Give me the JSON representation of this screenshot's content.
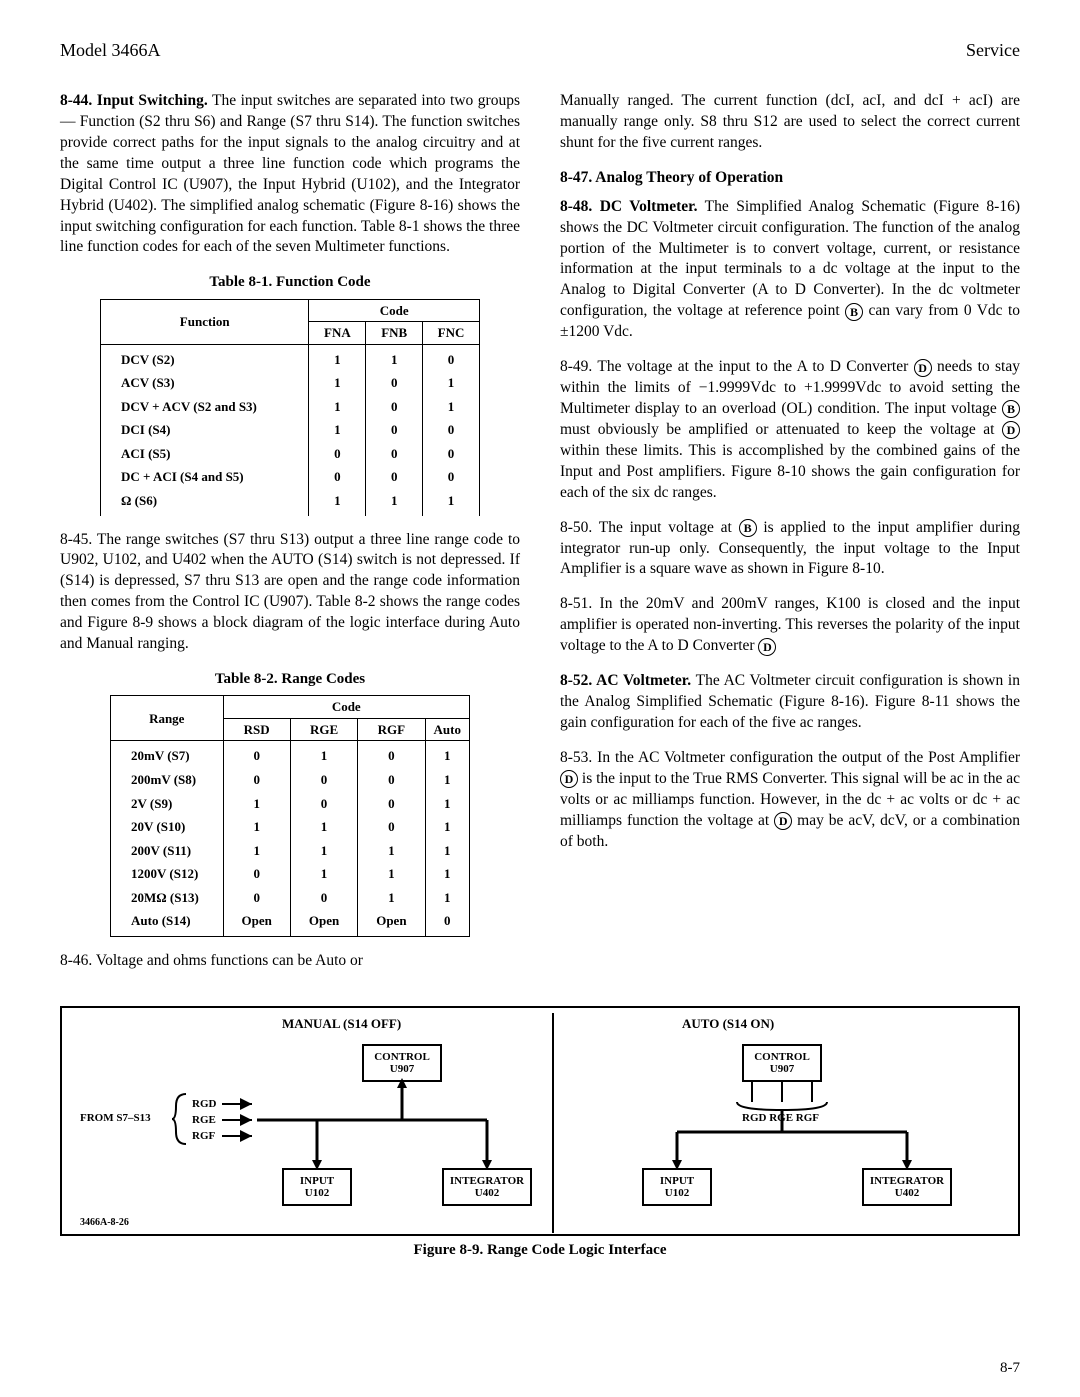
{
  "header": {
    "left": "Model 3466A",
    "right": "Service"
  },
  "col1": {
    "p844": "8-44. Input Switching. The input switches are separated into two groups — Function (S2 thru S6) and Range (S7 thru S14). The function switches provide correct paths for the input signals to the analog circuitry and at the same time output a three line function code which programs the Digital Control IC (U907), the Input Hybrid (U102), and the Integrator Hybrid (U402). The simplified analog schematic (Figure 8-16) shows the input switching configuration for each function. Table 8-1 shows the three line function codes for each of the seven Multimeter functions.",
    "t81cap": "Table 8-1. Function Code",
    "t81": {
      "head_fn": "Function",
      "head_code": "Code",
      "h_fna": "FNA",
      "h_fnb": "FNB",
      "h_fnc": "FNC",
      "rows": [
        {
          "f": "DCV (S2)",
          "a": "1",
          "b": "1",
          "c": "0"
        },
        {
          "f": "ACV (S3)",
          "a": "1",
          "b": "0",
          "c": "1"
        },
        {
          "f": "DCV + ACV (S2 and S3)",
          "a": "1",
          "b": "0",
          "c": "1"
        },
        {
          "f": "DCI (S4)",
          "a": "1",
          "b": "0",
          "c": "0"
        },
        {
          "f": "ACI (S5)",
          "a": "0",
          "b": "0",
          "c": "0"
        },
        {
          "f": "DC + ACI (S4 and S5)",
          "a": "0",
          "b": "0",
          "c": "0"
        },
        {
          "f": "Ω (S6)",
          "a": "1",
          "b": "1",
          "c": "1"
        }
      ]
    },
    "p845": "8-45. The range switches (S7 thru S13) output a three line range code to U902, U102, and U402 when the AUTO (S14) switch is not depressed. If (S14) is depressed, S7 thru S13 are open and the range code information then comes from the Control IC (U907). Table 8-2 shows the range codes and Figure 8-9 shows a block diagram of the logic interface during Auto and Manual ranging.",
    "t82cap": "Table 8-2. Range Codes",
    "t82": {
      "head_range": "Range",
      "head_code": "Code",
      "h_rsd": "RSD",
      "h_rge": "RGE",
      "h_rgf": "RGF",
      "h_auto": "Auto",
      "rows": [
        {
          "r": "20mV (S7)",
          "d": "0",
          "e": "1",
          "f": "0",
          "a": "1"
        },
        {
          "r": "200mV (S8)",
          "d": "0",
          "e": "0",
          "f": "0",
          "a": "1"
        },
        {
          "r": "2V (S9)",
          "d": "1",
          "e": "0",
          "f": "0",
          "a": "1"
        },
        {
          "r": "20V (S10)",
          "d": "1",
          "e": "1",
          "f": "0",
          "a": "1"
        },
        {
          "r": "200V (S11)",
          "d": "1",
          "e": "1",
          "f": "1",
          "a": "1"
        },
        {
          "r": "1200V (S12)",
          "d": "0",
          "e": "1",
          "f": "1",
          "a": "1"
        },
        {
          "r": "20MΩ (S13)",
          "d": "0",
          "e": "0",
          "f": "1",
          "a": "1"
        },
        {
          "r": "Auto (S14)",
          "d": "Open",
          "e": "Open",
          "f": "Open",
          "a": "0"
        }
      ]
    },
    "p846": "8-46. Voltage and ohms functions can be Auto or"
  },
  "col2": {
    "p846b": "Manually ranged. The current function (dcI, acI, and dcI + acI) are manually range only. S8 thru S12 are used to select the correct current shunt for the five current ranges.",
    "s847": "8-47. Analog Theory of Operation",
    "p848a": "8-48. DC Voltmeter. The Simplified Analog Schematic (Figure 8-16) shows the DC Voltmeter circuit configuration. The function of the analog portion of the Multimeter is to convert voltage, current, or resistance information at the input terminals to a dc voltage at the input to the Analog to Digital Converter (A to D Converter). In the dc voltmeter configuration, the voltage at reference point ",
    "p848b": " can vary from 0 Vdc to ±1200 Vdc.",
    "p849a": "8-49. The voltage at the input to the A to D Converter ",
    "p849b": " needs to stay within the limits of −1.9999Vdc to +1.9999Vdc to avoid setting the Multimeter display to an overload (OL) condition. The input voltage ",
    "p849c": " must obviously be amplified or attenuated to keep the voltage at ",
    "p849d": " within these limits. This is accomplished by the combined gains of the Input and Post amplifiers. Figure 8-10 shows the gain configuration for each of the six dc ranges.",
    "p850a": "8-50. The input voltage at ",
    "p850b": " is applied to the input amplifier during integrator run-up only. Consequently, the input voltage to the Input Amplifier is a square wave as shown in Figure 8-10.",
    "p851a": "8-51. In the 20mV and 200mV ranges, K100 is closed and the input amplifier is operated non-inverting. This reverses the polarity of the input voltage to the A to D Converter ",
    "p852": "8-52. AC Voltmeter. The AC Voltmeter circuit configuration is shown in the Analog Simplified Schematic (Figure 8-16). Figure 8-11 shows the gain configuration for each of the five ac ranges.",
    "p853a": "8-53. In the AC Voltmeter configuration the output of the Post Amplifier ",
    "p853b": " is the input to the True RMS Converter. This signal will be ac in the ac volts or ac milliamps function. However, in the dc + ac volts or dc + ac milliamps function the voltage at ",
    "p853c": " may be acV, dcV, or a combination of both."
  },
  "diagram": {
    "manual": "MANUAL (S14 OFF)",
    "auto": "AUTO (S14 ON)",
    "from": "FROM S7–S13",
    "rgd": "RGD",
    "rge": "RGE",
    "rgf": "RGF",
    "rgd_rge_rgf": "RGD  RGE  RGF",
    "control": "CONTROL U907",
    "input": "INPUT U102",
    "integrator": "INTEGRATOR U402",
    "partnum": "3466A-8-26"
  },
  "figcap": "Figure 8-9. Range Code Logic Interface",
  "pagenum": "8-7"
}
